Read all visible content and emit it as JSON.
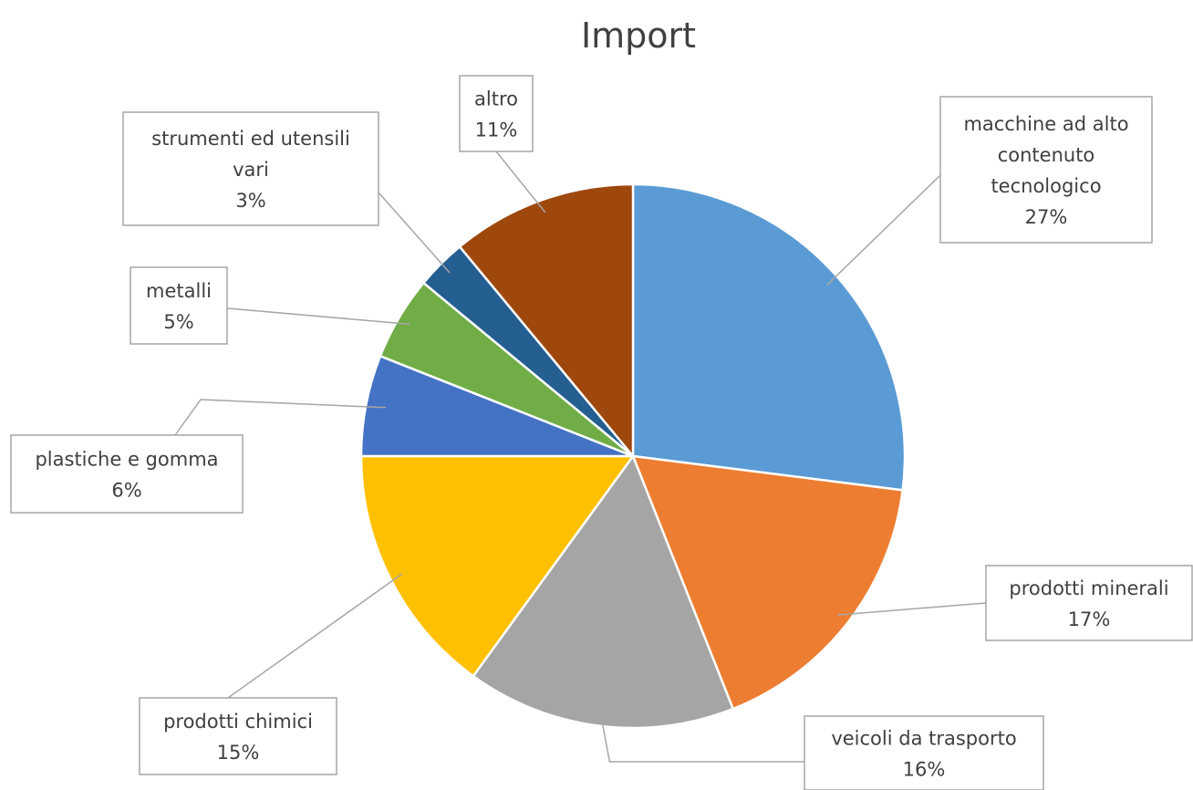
{
  "chart_data": {
    "type": "pie",
    "title": "Import",
    "start": "top, clockwise",
    "slices": [
      {
        "label": "macchine ad alto contenuto tecnologico",
        "lines": [
          "macchine ad alto",
          "contenuto",
          "tecnologico"
        ],
        "value": 27,
        "display": "27%",
        "color": "#5b9bd5"
      },
      {
        "label": "prodotti minerali",
        "lines": [
          "prodotti minerali"
        ],
        "value": 17,
        "display": "17%",
        "color": "#ed7d31"
      },
      {
        "label": "veicoli da trasporto",
        "lines": [
          "veicoli da trasporto"
        ],
        "value": 16,
        "display": "16%",
        "color": "#a5a5a5"
      },
      {
        "label": "prodotti chimici",
        "lines": [
          "prodotti chimici"
        ],
        "value": 15,
        "display": "15%",
        "color": "#ffc000"
      },
      {
        "label": "plastiche e gomma",
        "lines": [
          "plastiche e gomma"
        ],
        "value": 6,
        "display": "6%",
        "color": "#4472c4"
      },
      {
        "label": "metalli",
        "lines": [
          "metalli"
        ],
        "value": 5,
        "display": "5%",
        "color": "#70ad47"
      },
      {
        "label": "strumenti ed utensili vari",
        "lines": [
          "strumenti ed utensili",
          "vari"
        ],
        "value": 3,
        "display": "3%",
        "color": "#255e91"
      },
      {
        "label": "altro",
        "lines": [
          "altro"
        ],
        "value": 11,
        "display": "11%",
        "color": "#9e480e"
      }
    ]
  }
}
